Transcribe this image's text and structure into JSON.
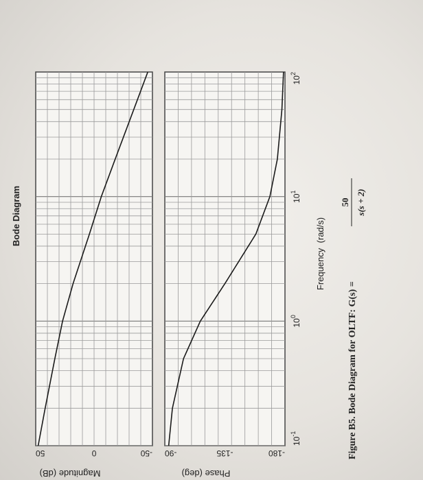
{
  "chart_data": {
    "type": "line",
    "title": "Bode Diagram",
    "xlabel": "Frequency  (rad/s)",
    "xscale": "log",
    "xlim": [
      0.1,
      100
    ],
    "x_ticks": [
      {
        "value": 0.1,
        "base": "10",
        "exp": "-1"
      },
      {
        "value": 1,
        "base": "10",
        "exp": "0"
      },
      {
        "value": 10,
        "base": "10",
        "exp": "1"
      },
      {
        "value": 100,
        "base": "10",
        "exp": "2"
      }
    ],
    "grid": true,
    "subplots": [
      {
        "ylabel": "Magnitude (dB)",
        "ylim": [
          -50,
          50
        ],
        "y_ticks": [
          "-50",
          "0",
          "50"
        ],
        "series": [
          {
            "x": [
              0.1,
              0.2,
              0.5,
              1,
              2,
              5,
              10,
              20,
              50,
              100
            ],
            "y": [
              47.9,
              41.9,
              33.6,
              27.0,
              18.0,
              4.0,
              -6.2,
              -18.1,
              -34.0,
              -46.0
            ]
          }
        ]
      },
      {
        "ylabel": "Phase (deg)",
        "ylim": [
          -180,
          -90
        ],
        "y_ticks": [
          "-180",
          "-135",
          "-90"
        ],
        "series": [
          {
            "x": [
              0.1,
              0.2,
              0.5,
              1,
              2,
              5,
              10,
              20,
              50,
              100
            ],
            "y": [
              -92.9,
              -95.7,
              -104.0,
              -116.6,
              -135.0,
              -158.2,
              -168.7,
              -174.3,
              -177.7,
              -178.9
            ]
          }
        ]
      }
    ]
  },
  "caption": {
    "text": "Figure B5. Bode Diagram for OLTF: G(s) =",
    "numerator": "50",
    "denominator": "s(s + 2)"
  }
}
